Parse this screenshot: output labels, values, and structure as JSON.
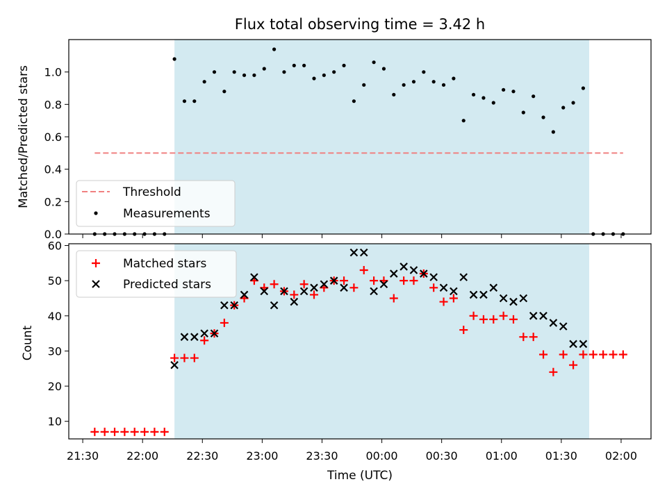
{
  "title": "Flux total observing time = 3.42 h",
  "colors": {
    "observing_shade": "#d3eaf1",
    "threshold": "#f08080",
    "measurement": "#000000",
    "matched": "#ff0000",
    "predicted": "#000000"
  },
  "chart_data": [
    {
      "type": "scatter",
      "panel": "top",
      "ylabel": "Matched/Predicted stars",
      "xlim": [
        "21:23",
        "02:15"
      ],
      "ylim": [
        0,
        1.2
      ],
      "yticks": [
        0.0,
        0.2,
        0.4,
        0.6,
        0.8,
        1.0
      ],
      "ytick_labels": [
        "0.0",
        "0.2",
        "0.4",
        "0.6",
        "0.8",
        "1.0"
      ],
      "shaded_interval": [
        "22:16",
        "01:44"
      ],
      "legend": {
        "position": "lower-left",
        "entries": [
          {
            "label": "Threshold",
            "marker": "dashed-line"
          },
          {
            "label": "Measurements",
            "marker": "dot"
          }
        ]
      },
      "threshold": {
        "name": "Threshold",
        "value": 0.5,
        "x_range": [
          "21:36",
          "02:01"
        ]
      },
      "series": [
        {
          "name": "Measurements",
          "marker": "dot",
          "x": [
            "21:36",
            "21:41",
            "21:46",
            "21:51",
            "21:56",
            "22:01",
            "22:06",
            "22:11",
            "22:16",
            "22:21",
            "22:26",
            "22:31",
            "22:36",
            "22:41",
            "22:46",
            "22:51",
            "22:56",
            "23:01",
            "23:06",
            "23:11",
            "23:16",
            "23:21",
            "23:26",
            "23:31",
            "23:36",
            "23:41",
            "23:46",
            "23:51",
            "23:56",
            "00:01",
            "00:06",
            "00:11",
            "00:16",
            "00:21",
            "00:26",
            "00:31",
            "00:36",
            "00:41",
            "00:46",
            "00:51",
            "00:56",
            "01:01",
            "01:06",
            "01:11",
            "01:16",
            "01:21",
            "01:26",
            "01:31",
            "01:36",
            "01:41",
            "01:46",
            "01:51",
            "01:56",
            "02:01"
          ],
          "y": [
            0,
            0,
            0,
            0,
            0,
            0,
            0,
            0,
            1.08,
            0.82,
            0.82,
            0.94,
            1.0,
            0.88,
            1.0,
            0.98,
            0.98,
            1.02,
            1.14,
            1.0,
            1.04,
            1.04,
            0.96,
            0.98,
            1.0,
            1.04,
            0.82,
            0.92,
            1.06,
            1.02,
            0.86,
            0.92,
            0.94,
            1.0,
            0.94,
            0.92,
            0.96,
            0.7,
            0.86,
            0.84,
            0.81,
            0.89,
            0.88,
            0.75,
            0.85,
            0.72,
            0.63,
            0.78,
            0.81,
            0.9,
            0,
            0,
            0,
            0
          ]
        }
      ]
    },
    {
      "type": "scatter",
      "panel": "bottom",
      "xlabel": "Time (UTC)",
      "ylabel": "Count",
      "xlim": [
        "21:23",
        "02:15"
      ],
      "ylim": [
        5,
        60.5
      ],
      "xticks": [
        "21:30",
        "22:00",
        "22:30",
        "23:00",
        "23:30",
        "00:00",
        "00:30",
        "01:00",
        "01:30",
        "02:00"
      ],
      "yticks": [
        10,
        20,
        30,
        40,
        50,
        60
      ],
      "ytick_labels": [
        "10",
        "20",
        "30",
        "40",
        "50",
        "60"
      ],
      "shaded_interval": [
        "22:16",
        "01:44"
      ],
      "legend": {
        "position": "upper-left",
        "entries": [
          {
            "label": "Matched stars",
            "marker": "plus"
          },
          {
            "label": "Predicted stars",
            "marker": "x"
          }
        ]
      },
      "series": [
        {
          "name": "Matched stars",
          "marker": "plus",
          "x": [
            "21:36",
            "21:41",
            "21:46",
            "21:51",
            "21:56",
            "22:01",
            "22:06",
            "22:11",
            "22:16",
            "22:21",
            "22:26",
            "22:31",
            "22:36",
            "22:41",
            "22:46",
            "22:51",
            "22:56",
            "23:01",
            "23:06",
            "23:11",
            "23:16",
            "23:21",
            "23:26",
            "23:31",
            "23:36",
            "23:41",
            "23:46",
            "23:51",
            "23:56",
            "00:01",
            "00:06",
            "00:11",
            "00:16",
            "00:21",
            "00:26",
            "00:31",
            "00:36",
            "00:41",
            "00:46",
            "00:51",
            "00:56",
            "01:01",
            "01:06",
            "01:11",
            "01:16",
            "01:21",
            "01:26",
            "01:31",
            "01:36",
            "01:41",
            "01:46",
            "01:51",
            "01:56",
            "02:01"
          ],
          "y": [
            7,
            7,
            7,
            7,
            7,
            7,
            7,
            7,
            28,
            28,
            28,
            33,
            35,
            38,
            43,
            45,
            50,
            48,
            49,
            47,
            46,
            49,
            46,
            48,
            50,
            50,
            48,
            53,
            50,
            50,
            45,
            50,
            50,
            52,
            48,
            44,
            45,
            36,
            40,
            39,
            39,
            40,
            39,
            34,
            34,
            29,
            24,
            29,
            26,
            29,
            29,
            29,
            29,
            29
          ]
        },
        {
          "name": "Predicted stars",
          "marker": "x",
          "x": [
            "22:16",
            "22:21",
            "22:26",
            "22:31",
            "22:36",
            "22:41",
            "22:46",
            "22:51",
            "22:56",
            "23:01",
            "23:06",
            "23:11",
            "23:16",
            "23:21",
            "23:26",
            "23:31",
            "23:36",
            "23:41",
            "23:46",
            "23:51",
            "23:56",
            "00:01",
            "00:06",
            "00:11",
            "00:16",
            "00:21",
            "00:26",
            "00:31",
            "00:36",
            "00:41",
            "00:46",
            "00:51",
            "00:56",
            "01:01",
            "01:06",
            "01:11",
            "01:16",
            "01:21",
            "01:26",
            "01:31",
            "01:36",
            "01:41"
          ],
          "y": [
            26,
            34,
            34,
            35,
            35,
            43,
            43,
            46,
            51,
            47,
            43,
            47,
            44,
            47,
            48,
            49,
            50,
            48,
            58,
            58,
            47,
            49,
            52,
            54,
            53,
            52,
            51,
            48,
            47,
            51,
            46,
            46,
            48,
            45,
            44,
            45,
            40,
            40,
            38,
            37,
            32,
            32
          ]
        }
      ]
    }
  ]
}
